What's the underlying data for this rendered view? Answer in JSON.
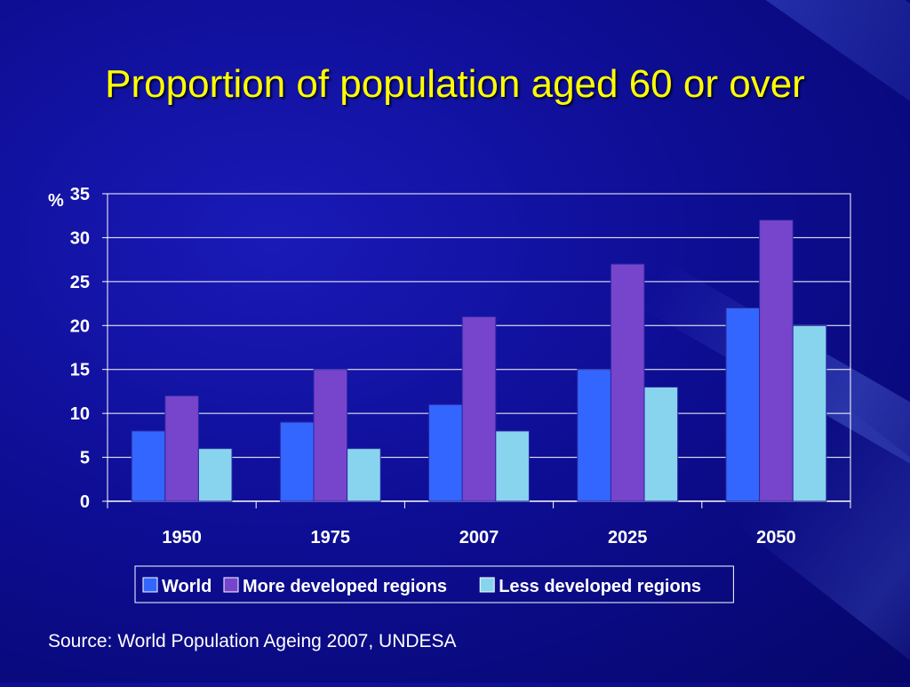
{
  "slide": {
    "title": "Proportion of population aged 60 or over",
    "source": "Source: World Population Ageing 2007, UNDESA"
  },
  "chart_data": {
    "type": "bar",
    "title": "Proportion of population aged 60 or over",
    "ylabel": "%",
    "xlabel": "",
    "ylim": [
      0,
      35
    ],
    "yticks": [
      0,
      5,
      10,
      15,
      20,
      25,
      30,
      35
    ],
    "grid": true,
    "legend_position": "bottom",
    "categories": [
      "1950",
      "1975",
      "2007",
      "2025",
      "2050"
    ],
    "series": [
      {
        "name": "World",
        "values": [
          8,
          9,
          11,
          15,
          22
        ],
        "color": "#3366ff"
      },
      {
        "name": "More developed regions",
        "values": [
          12,
          15,
          21,
          27,
          32
        ],
        "color": "#7744cc"
      },
      {
        "name": "Less developed regions",
        "values": [
          6,
          6,
          8,
          13,
          20
        ],
        "color": "#88d4ee"
      }
    ]
  }
}
